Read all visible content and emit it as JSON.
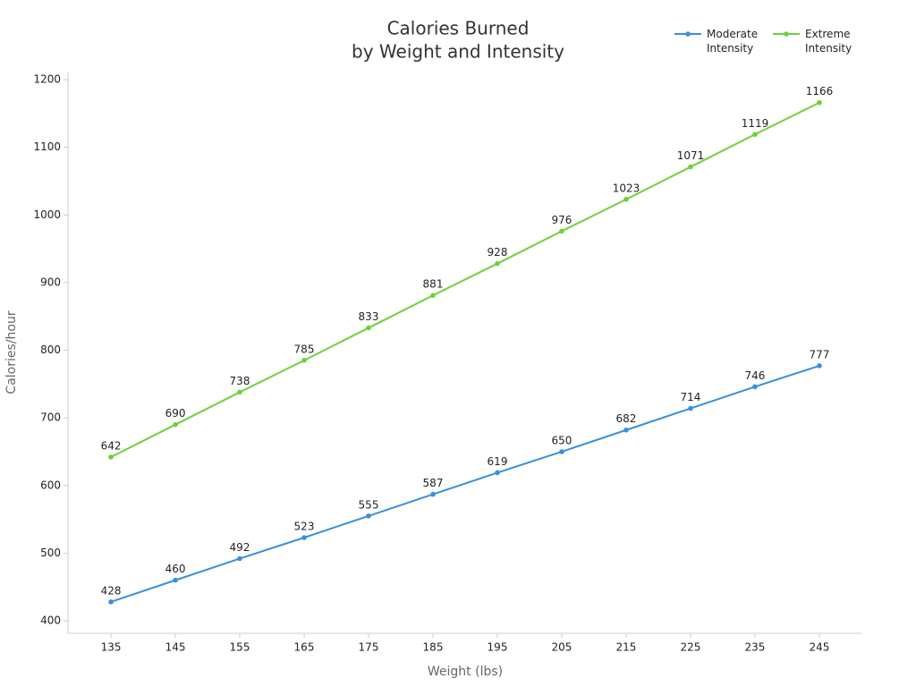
{
  "chart_data": {
    "type": "line",
    "title": [
      "Calories Burned",
      "by Weight and Intensity"
    ],
    "x_label": "Weight (lbs)",
    "y_label": "Calories/hour",
    "x": [
      135,
      145,
      155,
      165,
      175,
      185,
      195,
      205,
      215,
      225,
      235,
      245
    ],
    "series": [
      {
        "name": "Moderate Intensity",
        "color": "#3a8fdb",
        "values": [
          428,
          460,
          492,
          523,
          555,
          587,
          619,
          650,
          682,
          714,
          746,
          777
        ]
      },
      {
        "name": "Extreme Intensity",
        "color": "#6dd13a",
        "values": [
          642,
          690,
          738,
          785,
          833,
          881,
          928,
          976,
          1023,
          1071,
          1119,
          1166
        ]
      }
    ],
    "xlim": [
      128.33,
      251.53
    ],
    "xticks": [
      135,
      145,
      155,
      165,
      175,
      185,
      195,
      205,
      215,
      225,
      235,
      245
    ],
    "ylim": [
      381.5,
      1211.9
    ],
    "yticks": [
      400,
      500,
      600,
      700,
      800,
      900,
      1000,
      1100,
      1200
    ],
    "grid": false,
    "legend_position": "top-right"
  }
}
